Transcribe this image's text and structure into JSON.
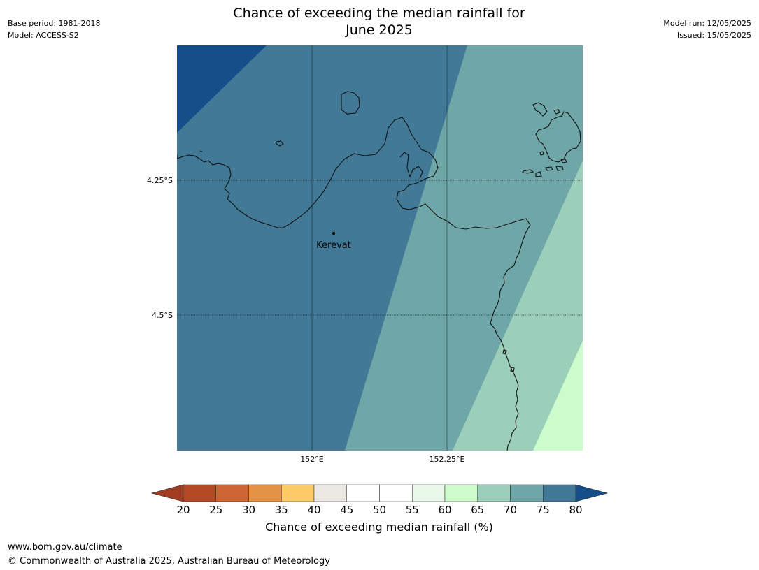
{
  "header": {
    "title_line1": "Chance of exceeding the median rainfall for",
    "title_line2": "June 2025",
    "base_period": "Base period: 1981-2018",
    "model": "Model: ACCESS-S2",
    "model_run": "Model run: 12/05/2025",
    "issued": "Issued: 15/05/2025"
  },
  "map": {
    "place_label": "Kerevat",
    "lat_labels": [
      "4.25°S",
      "4.5°S"
    ],
    "lon_labels": [
      "152°E",
      "152.25°E"
    ]
  },
  "colorbar": {
    "label": "Chance of exceeding median rainfall (%)",
    "ticks": [
      "20",
      "25",
      "30",
      "35",
      "40",
      "45",
      "50",
      "55",
      "60",
      "65",
      "70",
      "75",
      "80"
    ],
    "colors": [
      "#a03d23",
      "#b44a25",
      "#cc6433",
      "#e39444",
      "#fdcb68",
      "#ece9e4",
      "#ffffff",
      "#ffffff",
      "#eaf8ea",
      "#ccfccc",
      "#9ccfb9",
      "#6fa6a8",
      "#417997",
      "#154e88"
    ]
  },
  "footer": {
    "url": "www.bom.gov.au/climate",
    "copyright": "© Commonwealth of Australia 2025, Australian Bureau of Meteorology"
  }
}
